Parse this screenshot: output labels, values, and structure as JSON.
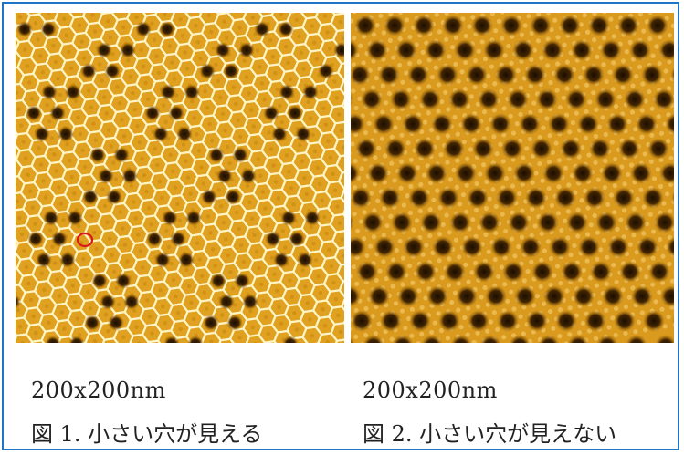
{
  "figure_left": {
    "scale_label": "200x200nm",
    "caption": "図 1. 小さい穴が見える",
    "has_marker_circle": true
  },
  "figure_right": {
    "scale_label": "200x200nm",
    "caption": "図 2. 小さい穴が見えない"
  },
  "colors": {
    "border": "#1f76c8",
    "stm_base": "#e0a020",
    "stm_bright": "#fff6c8",
    "stm_hole": "#1a0d00",
    "marker": "#d81a1a"
  }
}
